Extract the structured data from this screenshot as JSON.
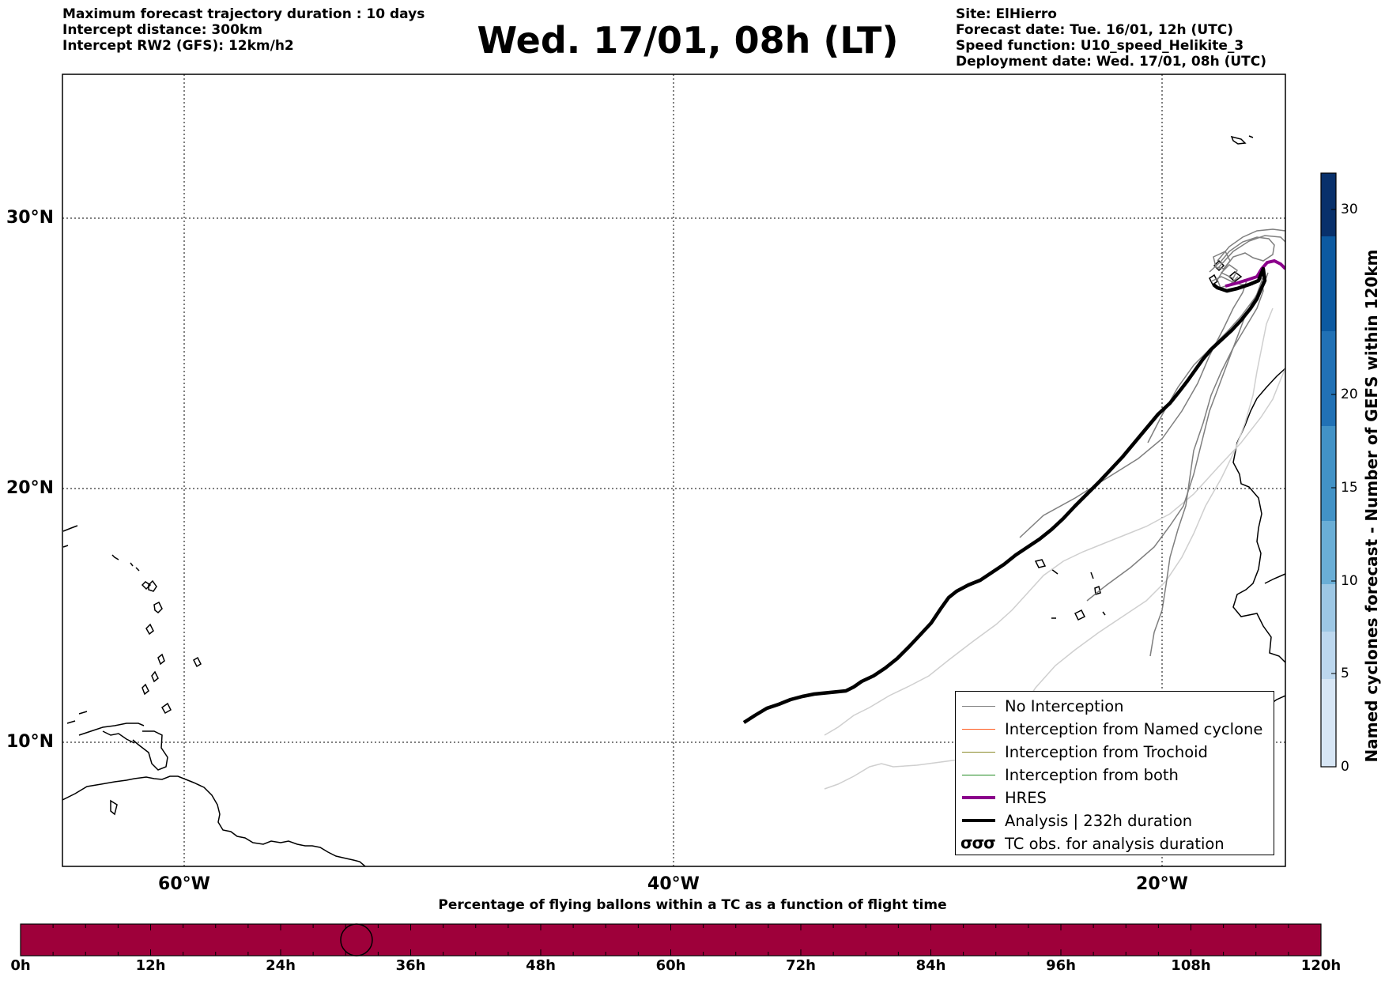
{
  "header_left": [
    "Maximum forecast trajectory duration : 10 days",
    "Intercept distance: 300km",
    "Intercept RW2 (GFS):  12km/h2"
  ],
  "title": "Wed. 17/01, 08h (LT)",
  "header_right": [
    "Site: ElHierro",
    "Forecast date: Tue. 16/01, 12h (UTC)",
    "Speed function: U10_speed_Helikite_3",
    "Deployment date: Wed. 17/01, 08h (UTC)"
  ],
  "map": {
    "lat_labels": [
      "30°N",
      "20°N",
      "10°N"
    ],
    "lon_labels": [
      "60°W",
      "40°W",
      "20°W"
    ],
    "grid": "dotted"
  },
  "legend": {
    "items": [
      {
        "label": "No Interception",
        "color": "#7f7f7f",
        "style": "thin-line"
      },
      {
        "label": "Interception from Named cyclone",
        "color": "#ff5a1e",
        "style": "thin-line"
      },
      {
        "label": "Interception from Trochoid",
        "color": "#8a8a2a",
        "style": "thin-line"
      },
      {
        "label": "Interception from both",
        "color": "#228b22",
        "style": "thin-line"
      },
      {
        "label": "HRES",
        "color": "#8b008b",
        "style": "thick-line"
      },
      {
        "label": "Analysis | 232h duration",
        "color": "#000000",
        "style": "thick-line"
      },
      {
        "label": "TC obs. for analysis duration",
        "color": "#000000",
        "style": "tc-symbol",
        "symbol": "σσσ"
      }
    ]
  },
  "colorbar": {
    "label": "Named cyclones forecast - Number of GEFS within 120km",
    "ticks": [
      "30",
      "20",
      "15",
      "10",
      "5",
      "0"
    ],
    "colors": [
      "#d7e6f5",
      "#bcd7ee",
      "#9dc7e4",
      "#6aaed6",
      "#4292c6",
      "#2171b5",
      "#0c5aa1",
      "#08306b"
    ]
  },
  "timeline": {
    "title": "Percentage of flying ballons within a TC as a function of flight time",
    "ticks": [
      "0h",
      "12h",
      "24h",
      "36h",
      "48h",
      "60h",
      "72h",
      "84h",
      "96h",
      "108h",
      "120h"
    ],
    "bar_color": "#9e003a",
    "marker_hour": 31
  }
}
